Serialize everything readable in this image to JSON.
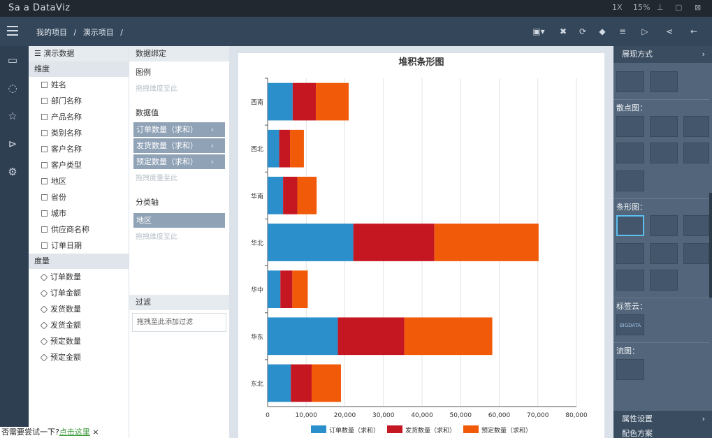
{
  "app": {
    "title": "Sa a DataViz"
  },
  "window": {
    "zoom": "1X",
    "percent": "15%"
  },
  "breadcrumb": [
    "我的项目",
    "/",
    "演示项目",
    "/"
  ],
  "fields": {
    "source": "演示数据",
    "dimension_label": "维度",
    "dimensions": [
      "姓名",
      "部门名称",
      "产品名称",
      "类别名称",
      "客户名称",
      "客户类型",
      "地区",
      "省份",
      "城市",
      "供应商名称",
      "订单日期"
    ],
    "measure_label": "度量",
    "measures": [
      "订单数量",
      "订单金额",
      "发货数量",
      "发货金额",
      "预定数量",
      "预定金额"
    ]
  },
  "binding": {
    "header": "数据绑定",
    "legend_label": "图例",
    "legend_placeholder": "拖拽维度至此",
    "values_label": "数据值",
    "values": [
      "订单数量（求和）",
      "发货数量（求和）",
      "预定数量（求和）"
    ],
    "values_placeholder": "拖拽度量至此",
    "axis_label": "分类轴",
    "axis_value": "地区",
    "axis_placeholder": "拖拽维度至此",
    "filter_header": "过滤",
    "filter_placeholder": "拖拽至此添加过滤"
  },
  "right": {
    "header": "展现方式",
    "scatter_label": "散点图：",
    "bar_label": "条形图：",
    "tag_label": "标签云：",
    "flow_label": "流图：",
    "props_label": "属性设置",
    "color_label": "配色方案",
    "bigdata_text": "BIGDATA"
  },
  "banner": {
    "text": "否需要尝试一下?",
    "link": "点击这里",
    "close": "×"
  },
  "colors": {
    "s1": "#2b8fcb",
    "s2": "#c51722",
    "s3": "#f05a08"
  },
  "chart_data": {
    "type": "bar",
    "orientation": "horizontal",
    "stacked": true,
    "title": "堆积条形图",
    "categories": [
      "西南",
      "西北",
      "华南",
      "华北",
      "华中",
      "华东",
      "东北"
    ],
    "series": [
      {
        "name": "订单数量（求和）",
        "values": [
          6500,
          3000,
          4000,
          22200,
          3300,
          18200,
          6000
        ]
      },
      {
        "name": "发货数量（求和）",
        "values": [
          6000,
          2800,
          3700,
          21000,
          3100,
          17200,
          5400
        ]
      },
      {
        "name": "预定数量（求和）",
        "values": [
          8500,
          3600,
          5000,
          27000,
          4000,
          22800,
          7600
        ]
      }
    ],
    "xlim": [
      0,
      80000
    ],
    "xticks": [
      "0",
      "10,000",
      "20,000",
      "30,000",
      "40,000",
      "50,000",
      "60,000",
      "70,000",
      "80,000"
    ],
    "grid": true,
    "legend_position": "bottom"
  }
}
